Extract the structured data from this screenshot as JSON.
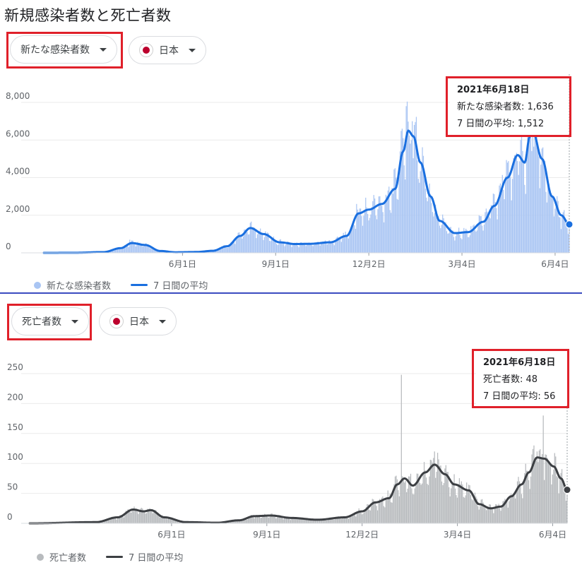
{
  "page_title": "新規感染者数と死亡者数",
  "top": {
    "metric_select": "新たな感染者数",
    "country_select": "日本",
    "flag_icon": "japan-flag-icon",
    "tooltip": {
      "date": "2021年6月18日",
      "line1": "新たな感染者数: 1,636",
      "line2": "7 日間の平均: 1,512"
    },
    "legend": {
      "bars": "新たな感染者数",
      "line": "7 日間の平均"
    }
  },
  "bottom": {
    "metric_select": "死亡者数",
    "country_select": "日本",
    "flag_icon": "japan-flag-icon",
    "tooltip": {
      "date": "2021年6月18日",
      "line1": "死亡者数: 48",
      "line2": "7 日間の平均: 56"
    },
    "legend": {
      "bars": "死亡者数",
      "line": "7 日間の平均"
    }
  },
  "colors": {
    "cases_bar": "#a9c5f3",
    "cases_line": "#1a6fdf",
    "deaths_bar": "#b8bbbe",
    "deaths_line": "#3c3f43",
    "highlight": "#e0202a"
  },
  "chart_data": [
    {
      "type": "bar",
      "title": "新たな感染者数",
      "x_range": [
        "2020-01-16",
        "2021-06-18"
      ],
      "x_tick_labels": [
        "6月1日",
        "9月1日",
        "12月2日",
        "3月4日",
        "6月4日"
      ],
      "x_tick_dates": [
        "2020-06-01",
        "2020-09-01",
        "2020-12-02",
        "2021-03-04",
        "2021-06-04"
      ],
      "y_ticks": [
        "0",
        "2,000",
        "4,000",
        "6,000",
        "8,000"
      ],
      "ylim": [
        0,
        8000
      ],
      "grid": true,
      "legend_position": "bottom-left",
      "series": [
        {
          "name": "7 日間の平均",
          "kind": "line",
          "points": [
            [
              "2020-01-16",
              0
            ],
            [
              "2020-02-15",
              5
            ],
            [
              "2020-03-15",
              40
            ],
            [
              "2020-04-01",
              250
            ],
            [
              "2020-04-12",
              520
            ],
            [
              "2020-04-25",
              420
            ],
            [
              "2020-05-10",
              100
            ],
            [
              "2020-05-25",
              30
            ],
            [
              "2020-06-15",
              45
            ],
            [
              "2020-07-01",
              110
            ],
            [
              "2020-07-15",
              350
            ],
            [
              "2020-07-28",
              900
            ],
            [
              "2020-08-07",
              1320
            ],
            [
              "2020-08-20",
              1000
            ],
            [
              "2020-09-05",
              560
            ],
            [
              "2020-09-20",
              470
            ],
            [
              "2020-10-05",
              480
            ],
            [
              "2020-10-25",
              560
            ],
            [
              "2020-11-10",
              900
            ],
            [
              "2020-11-22",
              2100
            ],
            [
              "2020-12-02",
              2300
            ],
            [
              "2020-12-15",
              2600
            ],
            [
              "2020-12-28",
              3400
            ],
            [
              "2021-01-05",
              5400
            ],
            [
              "2021-01-10",
              6500
            ],
            [
              "2021-01-15",
              6200
            ],
            [
              "2021-01-22",
              4800
            ],
            [
              "2021-02-01",
              3000
            ],
            [
              "2021-02-10",
              1700
            ],
            [
              "2021-02-25",
              1050
            ],
            [
              "2021-03-10",
              1100
            ],
            [
              "2021-03-25",
              1650
            ],
            [
              "2021-04-05",
              2500
            ],
            [
              "2021-04-18",
              4000
            ],
            [
              "2021-04-28",
              5200
            ],
            [
              "2021-05-05",
              4800
            ],
            [
              "2021-05-10",
              6200
            ],
            [
              "2021-05-13",
              6450
            ],
            [
              "2021-05-22",
              5000
            ],
            [
              "2021-06-01",
              3000
            ],
            [
              "2021-06-10",
              2000
            ],
            [
              "2021-06-18",
              1512
            ]
          ]
        },
        {
          "name": "新たな感染者数",
          "kind": "bar",
          "bars": [
            [
              "2020-04-10",
              700
            ],
            [
              "2020-08-07",
              1600
            ],
            [
              "2020-11-20",
              2600
            ],
            [
              "2020-12-12",
              3000
            ],
            [
              "2020-12-28",
              4500
            ],
            [
              "2021-01-08",
              7800
            ],
            [
              "2021-01-14",
              7000
            ],
            [
              "2021-01-16",
              6800
            ],
            [
              "2021-04-25",
              5200
            ],
            [
              "2021-05-01",
              6000
            ],
            [
              "2021-05-08",
              6900
            ],
            [
              "2021-05-13",
              7100
            ],
            [
              "2021-06-18",
              1636
            ]
          ]
        }
      ]
    },
    {
      "type": "bar",
      "title": "死亡者数",
      "x_range": [
        "2020-01-16",
        "2021-06-18"
      ],
      "x_tick_labels": [
        "6月1日",
        "9月1日",
        "12月2日",
        "3月4日",
        "6月4日"
      ],
      "x_tick_dates": [
        "2020-06-01",
        "2020-09-01",
        "2020-12-02",
        "2021-03-04",
        "2021-06-04"
      ],
      "y_ticks": [
        "0",
        "50",
        "100",
        "150",
        "200",
        "250"
      ],
      "ylim": [
        0,
        250
      ],
      "grid": true,
      "legend_position": "bottom-left",
      "series": [
        {
          "name": "7 日間の平均",
          "kind": "line",
          "points": [
            [
              "2020-01-16",
              0
            ],
            [
              "2020-03-20",
              2
            ],
            [
              "2020-04-10",
              10
            ],
            [
              "2020-04-25",
              23
            ],
            [
              "2020-05-05",
              20
            ],
            [
              "2020-05-12",
              22
            ],
            [
              "2020-05-25",
              10
            ],
            [
              "2020-06-15",
              2
            ],
            [
              "2020-07-15",
              1
            ],
            [
              "2020-08-05",
              5
            ],
            [
              "2020-08-20",
              12
            ],
            [
              "2020-09-05",
              13
            ],
            [
              "2020-09-25",
              9
            ],
            [
              "2020-10-20",
              6
            ],
            [
              "2020-11-15",
              10
            ],
            [
              "2020-12-02",
              20
            ],
            [
              "2020-12-15",
              35
            ],
            [
              "2020-12-28",
              42
            ],
            [
              "2021-01-05",
              65
            ],
            [
              "2021-01-12",
              75
            ],
            [
              "2021-01-20",
              63
            ],
            [
              "2021-02-01",
              85
            ],
            [
              "2021-02-10",
              98
            ],
            [
              "2021-02-20",
              82
            ],
            [
              "2021-03-01",
              65
            ],
            [
              "2021-03-15",
              55
            ],
            [
              "2021-03-25",
              32
            ],
            [
              "2021-04-05",
              25
            ],
            [
              "2021-04-15",
              28
            ],
            [
              "2021-04-25",
              45
            ],
            [
              "2021-05-05",
              65
            ],
            [
              "2021-05-12",
              85
            ],
            [
              "2021-05-20",
              110
            ],
            [
              "2021-05-27",
              108
            ],
            [
              "2021-06-05",
              95
            ],
            [
              "2021-06-12",
              75
            ],
            [
              "2021-06-18",
              56
            ]
          ]
        },
        {
          "name": "死亡者数",
          "kind": "bar",
          "bars": [
            [
              "2021-01-09",
              248
            ],
            [
              "2021-02-10",
              120
            ],
            [
              "2021-05-26",
              180
            ],
            [
              "2021-05-20",
              120
            ],
            [
              "2021-06-18",
              48
            ]
          ]
        }
      ]
    }
  ]
}
